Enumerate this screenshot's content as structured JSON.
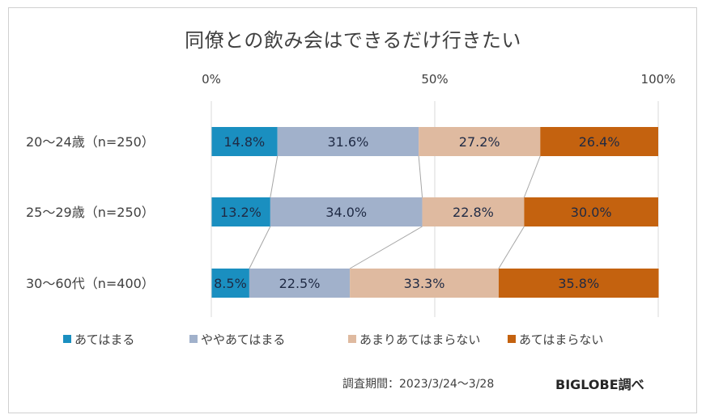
{
  "chart_data": {
    "type": "bar",
    "orientation": "horizontal",
    "stacked": "100%",
    "title": "同僚との飲み会はできるだけ行きたい",
    "categories": [
      "20〜24歳（n=250）",
      "25〜29歳（n=250）",
      "30〜60代（n=400）"
    ],
    "series": [
      {
        "name": "あてはまる",
        "color": "#1a8fc0",
        "values": [
          14.8,
          13.2,
          8.5
        ]
      },
      {
        "name": "ややあてはまる",
        "color": "#a1b1cb",
        "values": [
          31.6,
          34.0,
          22.5
        ]
      },
      {
        "name": "あまりあてはまらない",
        "color": "#dfbaa0",
        "values": [
          27.2,
          22.8,
          33.3
        ]
      },
      {
        "name": "あてはまらない",
        "color": "#c4620f",
        "values": [
          26.4,
          30.0,
          35.8
        ]
      }
    ],
    "xlim": [
      0,
      100
    ],
    "xticks": [
      0,
      50,
      100
    ],
    "xtick_labels": [
      "0%",
      "50%",
      "100%"
    ],
    "xlabel": "",
    "ylabel": "",
    "grid": true,
    "series_lines": true,
    "legend": "bottom",
    "data_label_suffix": "%"
  },
  "footer": {
    "survey_period": "調査期間：2023/3/24〜3/28",
    "source": "BIGLOBE調べ"
  }
}
